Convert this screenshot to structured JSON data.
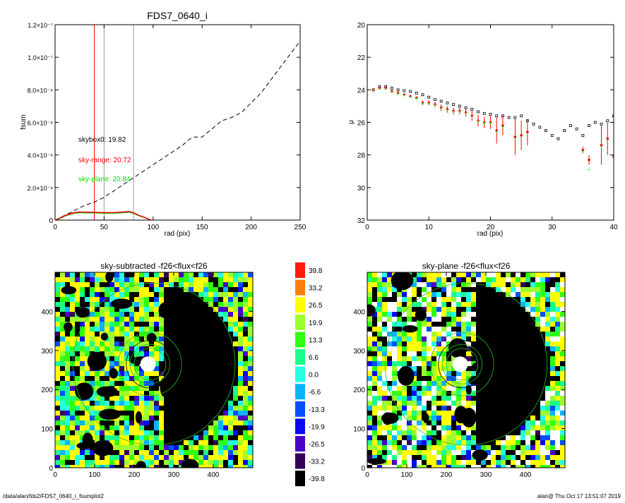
{
  "footer": {
    "path": "/data/alan/fds2/FDS7_0640_i_fsumplot2",
    "user_time": "alan@  Thu Oct 17 13:51:07 2019"
  },
  "colors": {
    "fsum_curve": "#000000",
    "range": "#ff0000",
    "plane": "#00cc00",
    "box": "#000000",
    "vline_red": "#ff0000",
    "vline_gray": "#999999"
  },
  "chart_data": [
    {
      "type": "line",
      "title": "FDS7_0640_i",
      "xlabel": "rad (pix)",
      "ylabel": "fsum",
      "xlim": [
        0,
        250
      ],
      "ylim": [
        0,
        1.2e-07
      ],
      "xticks": [
        "0",
        "50",
        "100",
        "150",
        "200",
        "250"
      ],
      "xtick_values": [
        0,
        50,
        100,
        150,
        200,
        250
      ],
      "yticks": [
        "0",
        "2.0×10⁻⁸",
        "4.0×10⁻⁸",
        "6.0×10⁻⁸",
        "8.0×10⁻⁸",
        "1.0×10⁻⁷",
        "1.2×10⁻⁷"
      ],
      "ytick_values": [
        0,
        2e-08,
        4e-08,
        6e-08,
        8e-08,
        1e-07,
        1.2e-07
      ],
      "vertical_lines": [
        {
          "x": 40,
          "color": "red"
        },
        {
          "x": 50,
          "color": "gray"
        },
        {
          "x": 80,
          "color": "gray"
        }
      ],
      "annotations": [
        {
          "text": "skybox0: 19.82",
          "color": "black"
        },
        {
          "text": "sky-range: 20.72",
          "color": "red"
        },
        {
          "text": "sky-plane: 20.84",
          "color": "green"
        }
      ],
      "series": [
        {
          "style": "dashed",
          "color": "black",
          "x": [
            0,
            10,
            20,
            30,
            40,
            50,
            60,
            70,
            80,
            90,
            100,
            110,
            120,
            130,
            140,
            150,
            160,
            170,
            180,
            190,
            200,
            210,
            220,
            230,
            240,
            250
          ],
          "y": [
            0,
            3e-09,
            6e-09,
            9e-09,
            1.1e-08,
            1.4e-08,
            1.8e-08,
            2.2e-08,
            2.6e-08,
            3e-08,
            3.4e-08,
            3.8e-08,
            4.2e-08,
            4.6e-08,
            5.1e-08,
            5.1e-08,
            5.6e-08,
            6.1e-08,
            6.3e-08,
            6.6e-08,
            7.2e-08,
            7.8e-08,
            8.6e-08,
            9.4e-08,
            1.02e-07,
            1.1e-07
          ]
        },
        {
          "style": "solid",
          "color": "green",
          "x": [
            0,
            5,
            10,
            15,
            20,
            25,
            30,
            40,
            50,
            60,
            70,
            75,
            80,
            85,
            90,
            95,
            97
          ],
          "y": [
            0,
            1e-09,
            2.5e-09,
            3.5e-09,
            4.2e-09,
            4.6e-09,
            4.5e-09,
            4.4e-09,
            4.2e-09,
            4.3e-09,
            4.6e-09,
            4.9e-09,
            4.2e-09,
            2.8e-09,
            1.8e-09,
            6e-10,
            0
          ]
        },
        {
          "style": "solid",
          "color": "red",
          "x": [
            0,
            5,
            10,
            15,
            20,
            25,
            30,
            40,
            50,
            60,
            70,
            75,
            80,
            85,
            90,
            95,
            98
          ],
          "y": [
            0,
            1.2e-09,
            2.8e-09,
            3.9e-09,
            4.6e-09,
            5e-09,
            4.9e-09,
            4.8e-09,
            4.6e-09,
            4.7e-09,
            5e-09,
            5.3e-09,
            4.6e-09,
            3e-09,
            2e-09,
            7e-10,
            0
          ]
        }
      ]
    },
    {
      "type": "scatter",
      "xlabel": "rad (pix)",
      "ylabel": "μ",
      "xlim": [
        0,
        40
      ],
      "ylim": [
        32,
        20
      ],
      "xticks": [
        "0",
        "10",
        "20",
        "30",
        "40"
      ],
      "xtick_values": [
        0,
        10,
        20,
        30,
        40
      ],
      "yticks": [
        "20",
        "22",
        "24",
        "26",
        "28",
        "30",
        "32"
      ],
      "ytick_values": [
        20,
        22,
        24,
        26,
        28,
        30,
        32
      ],
      "series": [
        {
          "marker": "square",
          "color": "black",
          "x": [
            1,
            2,
            3,
            4,
            5,
            6,
            7,
            8,
            9,
            10,
            11,
            12,
            13,
            14,
            15,
            16,
            17,
            18,
            19,
            20,
            21,
            22,
            23,
            24,
            25,
            26,
            27,
            28,
            29,
            30,
            31,
            32,
            33,
            34,
            35,
            36,
            37,
            38,
            39,
            40
          ],
          "y": [
            24.0,
            23.8,
            23.8,
            23.9,
            24.0,
            24.05,
            24.1,
            24.2,
            24.3,
            24.45,
            24.6,
            24.7,
            24.8,
            24.9,
            25.0,
            25.1,
            25.2,
            25.35,
            25.45,
            25.5,
            25.6,
            25.6,
            25.7,
            25.7,
            25.6,
            25.9,
            26.1,
            26.3,
            26.5,
            26.8,
            27.0,
            26.5,
            26.2,
            26.4,
            26.8,
            26.2,
            26.0,
            26.1,
            25.9,
            25.6
          ]
        },
        {
          "marker": "circle",
          "color": "red",
          "x": [
            1,
            2,
            3,
            4,
            5,
            6,
            7,
            8,
            9,
            10,
            11,
            12,
            13,
            14,
            15,
            16,
            17,
            18,
            19,
            20,
            21,
            22,
            24,
            25,
            26,
            35,
            36,
            38,
            39,
            40
          ],
          "y": [
            24.0,
            23.9,
            23.9,
            24.1,
            24.2,
            24.3,
            24.4,
            24.5,
            24.8,
            24.8,
            24.9,
            25.1,
            25.2,
            25.3,
            25.3,
            25.4,
            25.6,
            25.9,
            26.0,
            26.0,
            26.5,
            26.2,
            26.9,
            26.8,
            26.6,
            27.7,
            28.3,
            27.4,
            27.0,
            28.1
          ],
          "yerr": [
            0.1,
            0.1,
            0.1,
            0.1,
            0.1,
            0.1,
            0.1,
            0.1,
            0.15,
            0.15,
            0.15,
            0.2,
            0.2,
            0.2,
            0.2,
            0.25,
            0.3,
            0.35,
            0.35,
            0.4,
            0.8,
            0.6,
            1.1,
            0.9,
            0.8,
            0.2,
            0.3,
            1.2,
            1.0,
            0.9
          ]
        },
        {
          "marker": "dot",
          "color": "green",
          "x": [
            1,
            2,
            3,
            4,
            5,
            6,
            7,
            8,
            9,
            10,
            11,
            12,
            13,
            14,
            15,
            16,
            17,
            18,
            19,
            20,
            21,
            22,
            24,
            25,
            26,
            35,
            36,
            38,
            39
          ],
          "y": [
            24.0,
            23.95,
            23.95,
            24.15,
            24.25,
            24.35,
            24.45,
            24.55,
            24.85,
            24.85,
            24.95,
            25.15,
            25.25,
            25.35,
            25.35,
            25.45,
            25.65,
            25.95,
            26.05,
            26.05,
            26.6,
            26.3,
            27.0,
            26.9,
            26.7,
            27.8,
            28.9,
            27.5,
            27.1
          ]
        }
      ]
    },
    {
      "type": "heatmap",
      "title": "sky-subtracted -f26<flux<f26",
      "xlim": [
        0,
        500
      ],
      "ylim": [
        0,
        500
      ],
      "xticks": [
        "0",
        "100",
        "200",
        "300",
        "400"
      ],
      "xtick_values": [
        0,
        100,
        200,
        300,
        400
      ],
      "yticks": [
        "0",
        "100",
        "200",
        "300",
        "400"
      ],
      "ytick_values": [
        0,
        100,
        200,
        300,
        400
      ],
      "circles": [
        {
          "cx": 240,
          "cy": 265,
          "r": 60,
          "color": "black"
        },
        {
          "cx": 240,
          "cy": 265,
          "r": 40,
          "color": "green"
        },
        {
          "cx": 240,
          "cy": 265,
          "r": 50,
          "color": "green"
        },
        {
          "cx": 240,
          "cy": 265,
          "r": 80,
          "color": "green"
        },
        {
          "cx": 250,
          "cy": 265,
          "r": 205,
          "color": "green"
        }
      ]
    },
    {
      "type": "heatmap",
      "title": "sky-plane -f26<flux<f26",
      "xlim": [
        0,
        500
      ],
      "ylim": [
        0,
        500
      ],
      "xticks": [
        "0",
        "100",
        "200",
        "300",
        "400"
      ],
      "xtick_values": [
        0,
        100,
        200,
        300,
        400
      ],
      "yticks": [
        "0",
        "100",
        "200",
        "300",
        "400"
      ],
      "ytick_values": [
        0,
        100,
        200,
        300,
        400
      ],
      "circles": [
        {
          "cx": 240,
          "cy": 265,
          "r": 60,
          "color": "black"
        },
        {
          "cx": 240,
          "cy": 265,
          "r": 40,
          "color": "green"
        },
        {
          "cx": 240,
          "cy": 265,
          "r": 50,
          "color": "green"
        },
        {
          "cx": 240,
          "cy": 265,
          "r": 80,
          "color": "green"
        },
        {
          "cx": 250,
          "cy": 265,
          "r": 205,
          "color": "green"
        }
      ]
    }
  ],
  "colorbar": {
    "labels": [
      "39.8",
      "33.2",
      "26.5",
      "19.9",
      "13.3",
      "6.6",
      "0.0",
      "-6.6",
      "-13.3",
      "-19.9",
      "-26.5",
      "-33.2",
      "-39.8"
    ],
    "colors": [
      "#ff1a0a",
      "#ff7f0e",
      "#ffff00",
      "#9cff2e",
      "#30ff10",
      "#1aff8a",
      "#27ffe2",
      "#0ab4ff",
      "#0050ff",
      "#0a0af0",
      "#4a00c8",
      "#35005a",
      "#000000"
    ]
  }
}
